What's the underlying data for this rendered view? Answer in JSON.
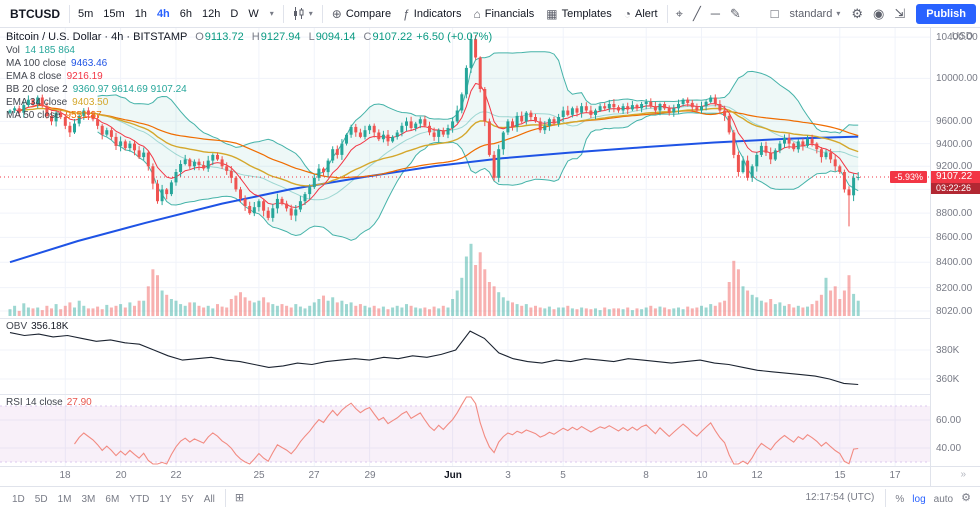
{
  "toolbar": {
    "symbol": "BTCUSD",
    "intervals": [
      "5m",
      "15m",
      "1h",
      "4h",
      "6h",
      "12h",
      "D",
      "W"
    ],
    "active_interval": "4h",
    "buttons": {
      "compare": "Compare",
      "indicators": "Indicators",
      "financials": "Financials",
      "templates": "Templates",
      "alert": "Alert"
    },
    "layout_preset": "standard",
    "publish_label": "Publish",
    "currency": "USD"
  },
  "legend": {
    "title": "Bitcoin / U.S. Dollar · 4h · BITSTAMP",
    "ohlc": {
      "o_label": "O",
      "o": "9113.72",
      "h_label": "H",
      "h": "9127.94",
      "l_label": "L",
      "l": "9094.14",
      "c_label": "C",
      "c": "9107.22",
      "change": "+6.50 (+0.07%)"
    },
    "indicators": [
      {
        "label": "Vol",
        "value": "14 185 864",
        "color": "#26a69a"
      },
      {
        "label": "MA 100 close",
        "value": "9463.46",
        "color": "#1e53e5"
      },
      {
        "label": "EMA 8 close",
        "value": "9216.19",
        "color": "#f23645"
      },
      {
        "label": "BB 20 close 2",
        "value": "9360.97  9614.69  9107.24",
        "color": "#26a69a"
      },
      {
        "label": "EMA 34 close",
        "value": "9403.50",
        "color": "#d4a72c"
      },
      {
        "label": "MA 50 close",
        "value": "9551.87",
        "color": "#ef6c00"
      }
    ]
  },
  "price_axis": {
    "labels": [
      "10400.00",
      "10000.00",
      "9600.00",
      "9400.00",
      "9200.00",
      "9000.00",
      "8800.00",
      "8600.00",
      "8400.00",
      "8200.00",
      "8020.00"
    ],
    "last_price": "9107.22",
    "countdown": "03:22:26",
    "change_percent": "-5.93%"
  },
  "panes": {
    "obv": {
      "label": "OBV",
      "value": "356.18K",
      "axis": [
        {
          "label": "380K",
          "v": 380
        },
        {
          "label": "360K",
          "v": 360
        }
      ]
    },
    "rsi": {
      "label": "RSI 14 close",
      "value": "27.90",
      "value_color": "#e8564e",
      "axis": [
        {
          "label": "60.00",
          "v": 60
        },
        {
          "label": "40.00",
          "v": 40
        }
      ]
    }
  },
  "time_axis": {
    "ticks": [
      {
        "label": "18",
        "i": 12
      },
      {
        "label": "20",
        "i": 24
      },
      {
        "label": "22",
        "i": 36
      },
      {
        "label": "25",
        "i": 54
      },
      {
        "label": "27",
        "i": 66
      },
      {
        "label": "29",
        "i": 78
      },
      {
        "label": "Jun",
        "i": 96,
        "bold": true
      },
      {
        "label": "3",
        "i": 108
      },
      {
        "label": "5",
        "i": 120
      },
      {
        "label": "8",
        "i": 138
      },
      {
        "label": "10",
        "i": 150
      },
      {
        "label": "12",
        "i": 162
      },
      {
        "label": "15",
        "i": 180
      },
      {
        "label": "17",
        "i": 192
      }
    ]
  },
  "bottom_bar": {
    "ranges": [
      "1D",
      "5D",
      "1M",
      "3M",
      "6M",
      "YTD",
      "1Y",
      "5Y",
      "All"
    ],
    "clock": "12:17:54 (UTC)",
    "scales": [
      {
        "label": "%",
        "active": false
      },
      {
        "label": "log",
        "active": true
      },
      {
        "label": "auto",
        "active": false
      }
    ]
  },
  "chart_data": {
    "type": "candlestick",
    "title": "Bitcoin / U.S. Dollar, 4h, BITSTAMP",
    "x_range": "May 16 - Jun 15",
    "y_axis": "Price in USD, log scale",
    "overlays": [
      "MA 100",
      "EMA 8",
      "BB 20 2",
      "EMA 34",
      "MA 50",
      "Volume"
    ],
    "lower_panes": [
      "OBV",
      "RSI 14"
    ],
    "last_close": 9107.22,
    "closes": [
      9700,
      9720,
      9680,
      9750,
      9800,
      9760,
      9820,
      9740,
      9650,
      9600,
      9680,
      9640,
      9560,
      9500,
      9580,
      9650,
      9700,
      9660,
      9620,
      9560,
      9480,
      9520,
      9460,
      9380,
      9420,
      9360,
      9400,
      9340,
      9280,
      9320,
      9200,
      9050,
      8900,
      9000,
      8960,
      9060,
      9150,
      9220,
      9260,
      9200,
      9240,
      9210,
      9180,
      9250,
      9300,
      9260,
      9200,
      9160,
      9100,
      9000,
      8920,
      8860,
      8800,
      8850,
      8900,
      8820,
      8760,
      8840,
      8920,
      8880,
      8840,
      8780,
      8830,
      8900,
      8960,
      9020,
      9100,
      9180,
      9150,
      9250,
      9350,
      9300,
      9400,
      9480,
      9550,
      9500,
      9460,
      9520,
      9560,
      9500,
      9440,
      9480,
      9420,
      9460,
      9500,
      9560,
      9600,
      9540,
      9580,
      9620,
      9560,
      9500,
      9460,
      9520,
      9480,
      9540,
      9600,
      9700,
      9850,
      10100,
      10380,
      10200,
      9900,
      9600,
      9300,
      9100,
      9350,
      9500,
      9600,
      9550,
      9650,
      9600,
      9680,
      9640,
      9600,
      9520,
      9560,
      9620,
      9580,
      9640,
      9700,
      9660,
      9720,
      9680,
      9740,
      9700,
      9660,
      9700,
      9740,
      9720,
      9760,
      9730,
      9700,
      9740,
      9710,
      9750,
      9720,
      9760,
      9780,
      9740,
      9700,
      9760,
      9720,
      9680,
      9720,
      9760,
      9800,
      9770,
      9730,
      9700,
      9740,
      9780,
      9820,
      9760,
      9700,
      9650,
      9500,
      9300,
      9150,
      9250,
      9100,
      9200,
      9300,
      9380,
      9320,
      9260,
      9340,
      9400,
      9450,
      9400,
      9350,
      9420,
      9380,
      9440,
      9400,
      9350,
      9280,
      9320,
      9260,
      9200,
      9150,
      9000,
      8950,
      9100,
      9107
    ],
    "volumes": [
      8,
      12,
      6,
      15,
      10,
      9,
      10,
      7,
      12,
      9,
      14,
      8,
      12,
      16,
      10,
      18,
      12,
      9,
      9,
      11,
      8,
      13,
      10,
      12,
      14,
      10,
      16,
      12,
      18,
      18,
      35,
      55,
      48,
      30,
      25,
      20,
      18,
      14,
      12,
      16,
      16,
      12,
      10,
      12,
      9,
      14,
      11,
      10,
      20,
      24,
      28,
      22,
      18,
      16,
      18,
      22,
      16,
      14,
      12,
      14,
      12,
      10,
      14,
      11,
      9,
      12,
      16,
      20,
      24,
      18,
      22,
      16,
      18,
      14,
      16,
      12,
      14,
      12,
      10,
      12,
      9,
      11,
      8,
      10,
      12,
      10,
      14,
      12,
      10,
      9,
      10,
      8,
      11,
      9,
      12,
      10,
      20,
      30,
      45,
      70,
      85,
      60,
      75,
      55,
      40,
      35,
      28,
      22,
      18,
      16,
      14,
      12,
      14,
      10,
      12,
      10,
      9,
      11,
      8,
      10,
      10,
      12,
      9,
      8,
      10,
      9,
      8,
      9,
      7,
      10,
      8,
      9,
      9,
      8,
      10,
      7,
      9,
      8,
      10,
      12,
      9,
      11,
      10,
      8,
      9,
      10,
      8,
      11,
      9,
      10,
      12,
      10,
      14,
      12,
      16,
      18,
      40,
      65,
      55,
      35,
      30,
      25,
      22,
      18,
      16,
      20,
      14,
      16,
      12,
      14,
      10,
      12,
      10,
      11,
      14,
      18,
      25,
      45,
      30,
      35,
      20,
      30,
      48,
      26,
      18
    ],
    "wick_overrides": {
      "100": [
        10429,
        null
      ],
      "182": [
        null,
        8690
      ]
    },
    "ma100_anchors": [
      [
        0,
        8400
      ],
      [
        0.08,
        8570
      ],
      [
        0.16,
        8720
      ],
      [
        0.25,
        8880
      ],
      [
        0.33,
        9000
      ],
      [
        0.42,
        9110
      ],
      [
        0.5,
        9200
      ],
      [
        0.58,
        9270
      ],
      [
        0.66,
        9320
      ],
      [
        0.75,
        9370
      ],
      [
        0.83,
        9410
      ],
      [
        0.92,
        9445
      ],
      [
        1,
        9463
      ]
    ],
    "obv_k": [
      392,
      390,
      391,
      389,
      390,
      388,
      386,
      387,
      385,
      384,
      380,
      376,
      373,
      374,
      375,
      373,
      372,
      370,
      368,
      369,
      371,
      370,
      372,
      373,
      374,
      373,
      375,
      374,
      376,
      375,
      377,
      380,
      393,
      388,
      378,
      374,
      372,
      371,
      373,
      372,
      374,
      373,
      372,
      374,
      373,
      372,
      371,
      372,
      373,
      371,
      370,
      368,
      366,
      365,
      364,
      363,
      362,
      360,
      357,
      356.2
    ]
  }
}
